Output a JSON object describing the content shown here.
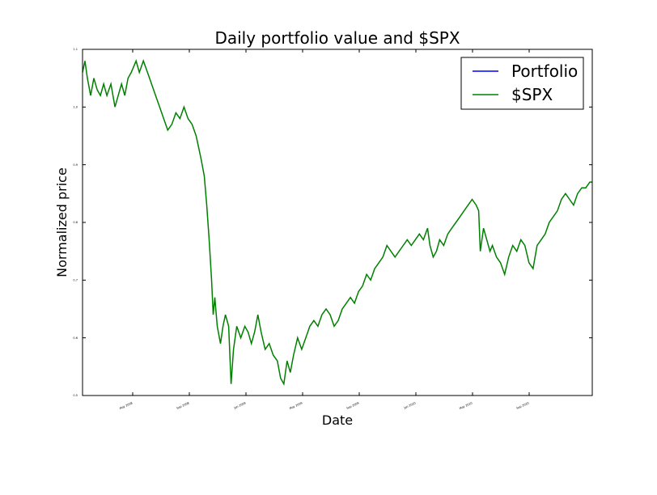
{
  "chart_data": {
    "type": "line",
    "title": "Daily portfolio value and $SPX",
    "xlabel": "Date",
    "ylabel": "Normalized price",
    "ylim": [
      0.5,
      1.1
    ],
    "yticks": [
      "0.5",
      "0.6",
      "0.7",
      "0.8",
      "0.9",
      "1.0",
      "1.1"
    ],
    "xticks": [
      "May 2008",
      "Sep 2008",
      "Jan 2009",
      "May 2009",
      "Sep 2009",
      "Jan 2010",
      "May 2010",
      "Sep 2010"
    ],
    "grid": false,
    "legend_position": "top-right",
    "series": [
      {
        "name": "Portfolio",
        "color": "#0000ff",
        "values": []
      },
      {
        "name": "$SPX",
        "color": "#008000",
        "values": [
          [
            0,
            1.06
          ],
          [
            3,
            1.08
          ],
          [
            6,
            1.05
          ],
          [
            10,
            1.02
          ],
          [
            14,
            1.05
          ],
          [
            18,
            1.03
          ],
          [
            22,
            1.02
          ],
          [
            26,
            1.04
          ],
          [
            30,
            1.02
          ],
          [
            35,
            1.04
          ],
          [
            40,
            1.0
          ],
          [
            44,
            1.02
          ],
          [
            48,
            1.04
          ],
          [
            52,
            1.02
          ],
          [
            56,
            1.05
          ],
          [
            60,
            1.06
          ],
          [
            63,
            1.07
          ],
          [
            66,
            1.08
          ],
          [
            70,
            1.06
          ],
          [
            75,
            1.08
          ],
          [
            80,
            1.06
          ],
          [
            85,
            1.04
          ],
          [
            90,
            1.02
          ],
          [
            95,
            1.0
          ],
          [
            100,
            0.98
          ],
          [
            105,
            0.96
          ],
          [
            110,
            0.97
          ],
          [
            115,
            0.99
          ],
          [
            120,
            0.98
          ],
          [
            125,
            1.0
          ],
          [
            130,
            0.98
          ],
          [
            135,
            0.97
          ],
          [
            140,
            0.95
          ],
          [
            143,
            0.93
          ],
          [
            146,
            0.91
          ],
          [
            150,
            0.88
          ],
          [
            153,
            0.83
          ],
          [
            156,
            0.77
          ],
          [
            159,
            0.7
          ],
          [
            161,
            0.64
          ],
          [
            163,
            0.67
          ],
          [
            166,
            0.62
          ],
          [
            170,
            0.59
          ],
          [
            173,
            0.62
          ],
          [
            176,
            0.64
          ],
          [
            180,
            0.62
          ],
          [
            183,
            0.52
          ],
          [
            186,
            0.58
          ],
          [
            190,
            0.62
          ],
          [
            195,
            0.6
          ],
          [
            200,
            0.62
          ],
          [
            204,
            0.61
          ],
          [
            208,
            0.59
          ],
          [
            212,
            0.61
          ],
          [
            216,
            0.64
          ],
          [
            220,
            0.61
          ],
          [
            225,
            0.58
          ],
          [
            230,
            0.59
          ],
          [
            235,
            0.57
          ],
          [
            240,
            0.56
          ],
          [
            244,
            0.53
          ],
          [
            248,
            0.52
          ],
          [
            252,
            0.56
          ],
          [
            256,
            0.54
          ],
          [
            260,
            0.57
          ],
          [
            265,
            0.6
          ],
          [
            270,
            0.58
          ],
          [
            275,
            0.6
          ],
          [
            280,
            0.62
          ],
          [
            285,
            0.63
          ],
          [
            290,
            0.62
          ],
          [
            295,
            0.64
          ],
          [
            300,
            0.65
          ],
          [
            305,
            0.64
          ],
          [
            310,
            0.62
          ],
          [
            315,
            0.63
          ],
          [
            320,
            0.65
          ],
          [
            325,
            0.66
          ],
          [
            330,
            0.67
          ],
          [
            335,
            0.66
          ],
          [
            340,
            0.68
          ],
          [
            345,
            0.69
          ],
          [
            350,
            0.71
          ],
          [
            355,
            0.7
          ],
          [
            360,
            0.72
          ],
          [
            365,
            0.73
          ],
          [
            370,
            0.74
          ],
          [
            375,
            0.76
          ],
          [
            380,
            0.75
          ],
          [
            385,
            0.74
          ],
          [
            390,
            0.75
          ],
          [
            395,
            0.76
          ],
          [
            400,
            0.77
          ],
          [
            405,
            0.76
          ],
          [
            410,
            0.77
          ],
          [
            415,
            0.78
          ],
          [
            420,
            0.77
          ],
          [
            425,
            0.79
          ],
          [
            428,
            0.76
          ],
          [
            432,
            0.74
          ],
          [
            436,
            0.75
          ],
          [
            440,
            0.77
          ],
          [
            445,
            0.76
          ],
          [
            450,
            0.78
          ],
          [
            455,
            0.79
          ],
          [
            460,
            0.8
          ],
          [
            465,
            0.81
          ],
          [
            470,
            0.82
          ],
          [
            475,
            0.83
          ],
          [
            480,
            0.84
          ],
          [
            485,
            0.83
          ],
          [
            488,
            0.82
          ],
          [
            490,
            0.75
          ],
          [
            494,
            0.79
          ],
          [
            498,
            0.77
          ],
          [
            502,
            0.75
          ],
          [
            505,
            0.76
          ],
          [
            510,
            0.74
          ],
          [
            515,
            0.73
          ],
          [
            520,
            0.71
          ],
          [
            525,
            0.74
          ],
          [
            530,
            0.76
          ],
          [
            535,
            0.75
          ],
          [
            540,
            0.77
          ],
          [
            545,
            0.76
          ],
          [
            550,
            0.73
          ],
          [
            555,
            0.72
          ],
          [
            560,
            0.76
          ],
          [
            565,
            0.77
          ],
          [
            570,
            0.78
          ],
          [
            575,
            0.8
          ],
          [
            580,
            0.81
          ],
          [
            585,
            0.82
          ],
          [
            590,
            0.84
          ],
          [
            595,
            0.85
          ],
          [
            600,
            0.84
          ],
          [
            605,
            0.83
          ],
          [
            610,
            0.85
          ],
          [
            615,
            0.86
          ],
          [
            620,
            0.86
          ],
          [
            625,
            0.87
          ],
          [
            628,
            0.87
          ]
        ]
      }
    ]
  }
}
